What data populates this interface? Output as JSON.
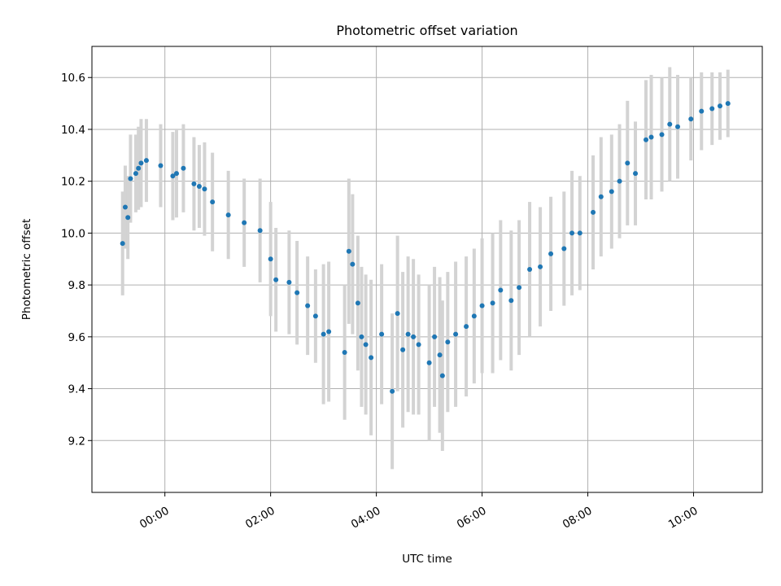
{
  "chart_data": {
    "type": "scatter",
    "title": "Photometric offset variation",
    "xlabel": "UTC time",
    "ylabel": "Photometric offset",
    "x_unit": "hours (UTC)",
    "xlim": [
      -1.38,
      11.3
    ],
    "ylim": [
      9.0,
      10.72
    ],
    "x_ticks": [
      0,
      2,
      4,
      6,
      8,
      10
    ],
    "x_tick_labels": [
      "00:00",
      "02:00",
      "04:00",
      "06:00",
      "08:00",
      "10:00"
    ],
    "y_ticks": [
      9.2,
      9.4,
      9.6,
      9.8,
      10.0,
      10.2,
      10.4,
      10.6
    ],
    "y_tick_labels": [
      "9.2",
      "9.4",
      "9.6",
      "9.8",
      "10.0",
      "10.2",
      "10.4",
      "10.6"
    ],
    "grid": true,
    "colors": {
      "points": "#1f77b4",
      "errorbars": "#d3d3d3"
    },
    "series": [
      {
        "name": "Photometric offset",
        "points": [
          [
            -0.8,
            9.96,
            0.2
          ],
          [
            -0.75,
            10.1,
            0.16
          ],
          [
            -0.7,
            10.06,
            0.16
          ],
          [
            -0.65,
            10.21,
            0.17
          ],
          [
            -0.55,
            10.23,
            0.15
          ],
          [
            -0.5,
            10.25,
            0.16
          ],
          [
            -0.45,
            10.27,
            0.17
          ],
          [
            -0.35,
            10.28,
            0.16
          ],
          [
            -0.08,
            10.26,
            0.16
          ],
          [
            0.15,
            10.22,
            0.17
          ],
          [
            0.22,
            10.23,
            0.17
          ],
          [
            0.35,
            10.25,
            0.17
          ],
          [
            0.55,
            10.19,
            0.18
          ],
          [
            0.65,
            10.18,
            0.16
          ],
          [
            0.75,
            10.17,
            0.18
          ],
          [
            0.9,
            10.12,
            0.19
          ],
          [
            1.2,
            10.07,
            0.17
          ],
          [
            1.5,
            10.04,
            0.17
          ],
          [
            1.8,
            10.01,
            0.2
          ],
          [
            2.0,
            9.9,
            0.22
          ],
          [
            2.1,
            9.82,
            0.2
          ],
          [
            2.35,
            9.81,
            0.2
          ],
          [
            2.5,
            9.77,
            0.2
          ],
          [
            2.7,
            9.72,
            0.19
          ],
          [
            2.85,
            9.68,
            0.18
          ],
          [
            3.0,
            9.61,
            0.27
          ],
          [
            3.1,
            9.62,
            0.27
          ],
          [
            3.4,
            9.54,
            0.26
          ],
          [
            3.48,
            9.93,
            0.28
          ],
          [
            3.55,
            9.88,
            0.27
          ],
          [
            3.65,
            9.73,
            0.26
          ],
          [
            3.72,
            9.6,
            0.27
          ],
          [
            3.8,
            9.57,
            0.27
          ],
          [
            3.9,
            9.52,
            0.3
          ],
          [
            4.1,
            9.61,
            0.27
          ],
          [
            4.3,
            9.39,
            0.3
          ],
          [
            4.4,
            9.69,
            0.3
          ],
          [
            4.5,
            9.55,
            0.3
          ],
          [
            4.6,
            9.61,
            0.3
          ],
          [
            4.7,
            9.6,
            0.3
          ],
          [
            4.8,
            9.57,
            0.27
          ],
          [
            5.0,
            9.5,
            0.3
          ],
          [
            5.1,
            9.6,
            0.27
          ],
          [
            5.2,
            9.53,
            0.3
          ],
          [
            5.25,
            9.45,
            0.29
          ],
          [
            5.35,
            9.58,
            0.27
          ],
          [
            5.5,
            9.61,
            0.28
          ],
          [
            5.7,
            9.64,
            0.27
          ],
          [
            5.85,
            9.68,
            0.26
          ],
          [
            6.0,
            9.72,
            0.26
          ],
          [
            6.2,
            9.73,
            0.27
          ],
          [
            6.35,
            9.78,
            0.27
          ],
          [
            6.55,
            9.74,
            0.27
          ],
          [
            6.7,
            9.79,
            0.26
          ],
          [
            6.9,
            9.86,
            0.26
          ],
          [
            7.1,
            9.87,
            0.23
          ],
          [
            7.3,
            9.92,
            0.22
          ],
          [
            7.55,
            9.94,
            0.22
          ],
          [
            7.7,
            10.0,
            0.24
          ],
          [
            7.85,
            10.0,
            0.22
          ],
          [
            8.1,
            10.08,
            0.22
          ],
          [
            8.25,
            10.14,
            0.23
          ],
          [
            8.45,
            10.16,
            0.22
          ],
          [
            8.6,
            10.2,
            0.22
          ],
          [
            8.75,
            10.27,
            0.24
          ],
          [
            8.9,
            10.23,
            0.2
          ],
          [
            9.1,
            10.36,
            0.23
          ],
          [
            9.2,
            10.37,
            0.24
          ],
          [
            9.4,
            10.38,
            0.22
          ],
          [
            9.55,
            10.42,
            0.22
          ],
          [
            9.7,
            10.41,
            0.2
          ],
          [
            9.95,
            10.44,
            0.16
          ],
          [
            10.15,
            10.47,
            0.15
          ],
          [
            10.35,
            10.48,
            0.14
          ],
          [
            10.5,
            10.49,
            0.13
          ],
          [
            10.65,
            10.5,
            0.13
          ]
        ]
      }
    ]
  }
}
